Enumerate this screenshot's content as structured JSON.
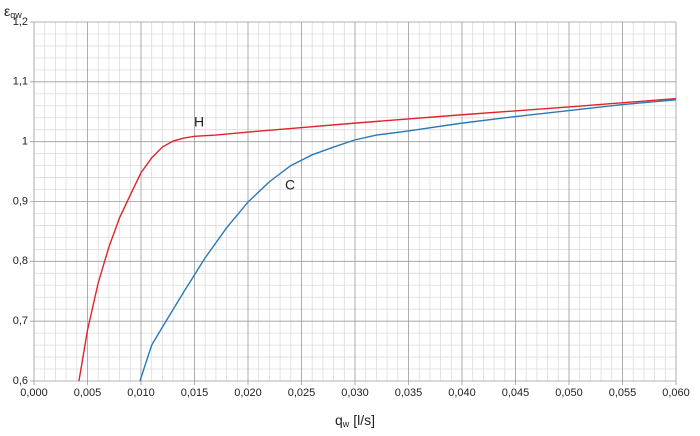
{
  "chart_data": {
    "type": "line",
    "ylabel": {
      "main": "ε",
      "sub": "qw"
    },
    "xlabel": {
      "main": "q",
      "sub": "w",
      "unit": "[l/s]"
    },
    "xlim": [
      0,
      0.06
    ],
    "ylim": [
      0.6,
      1.2
    ],
    "xticks": [
      {
        "value": 0,
        "label": "0,000"
      },
      {
        "value": 0.005,
        "label": "0,005"
      },
      {
        "value": 0.01,
        "label": "0,010"
      },
      {
        "value": 0.015,
        "label": "0,015"
      },
      {
        "value": 0.02,
        "label": "0,020"
      },
      {
        "value": 0.025,
        "label": "0,025"
      },
      {
        "value": 0.03,
        "label": "0,030"
      },
      {
        "value": 0.035,
        "label": "0,035"
      },
      {
        "value": 0.04,
        "label": "0,040"
      },
      {
        "value": 0.045,
        "label": "0,045"
      },
      {
        "value": 0.05,
        "label": "0,050"
      },
      {
        "value": 0.055,
        "label": "0,055"
      },
      {
        "value": 0.06,
        "label": "0,060"
      }
    ],
    "yticks": [
      {
        "value": 0.6,
        "label": "0,6"
      },
      {
        "value": 0.7,
        "label": "0,7"
      },
      {
        "value": 0.8,
        "label": "0,8"
      },
      {
        "value": 0.9,
        "label": "0,9"
      },
      1,
      {
        "value": 1.1,
        "label": "1,1"
      },
      {
        "value": 1.2,
        "label": "1,2"
      }
    ],
    "grid": true,
    "minor_grid": {
      "x": 5,
      "y": 5
    },
    "series": [
      {
        "name": "H",
        "color": "#e0242b",
        "x": [
          0.0042,
          0.005,
          0.006,
          0.007,
          0.008,
          0.009,
          0.01,
          0.011,
          0.012,
          0.013,
          0.014,
          0.015,
          0.017,
          0.02,
          0.03,
          0.04,
          0.05,
          0.06
        ],
        "values": [
          0.6,
          0.685,
          0.764,
          0.824,
          0.873,
          0.911,
          0.948,
          0.973,
          0.991,
          1.001,
          1.006,
          1.009,
          1.011,
          1.016,
          1.031,
          1.045,
          1.058,
          1.072
        ]
      },
      {
        "name": "C",
        "color": "#2a7ab8",
        "x": [
          0.0099,
          0.011,
          0.012,
          0.014,
          0.016,
          0.018,
          0.02,
          0.022,
          0.024,
          0.026,
          0.028,
          0.03,
          0.032,
          0.035,
          0.04,
          0.045,
          0.05,
          0.055,
          0.06
        ],
        "values": [
          0.6,
          0.66,
          0.69,
          0.749,
          0.806,
          0.856,
          0.899,
          0.933,
          0.96,
          0.978,
          0.991,
          1.003,
          1.011,
          1.018,
          1.031,
          1.042,
          1.052,
          1.062,
          1.07
        ]
      }
    ]
  }
}
